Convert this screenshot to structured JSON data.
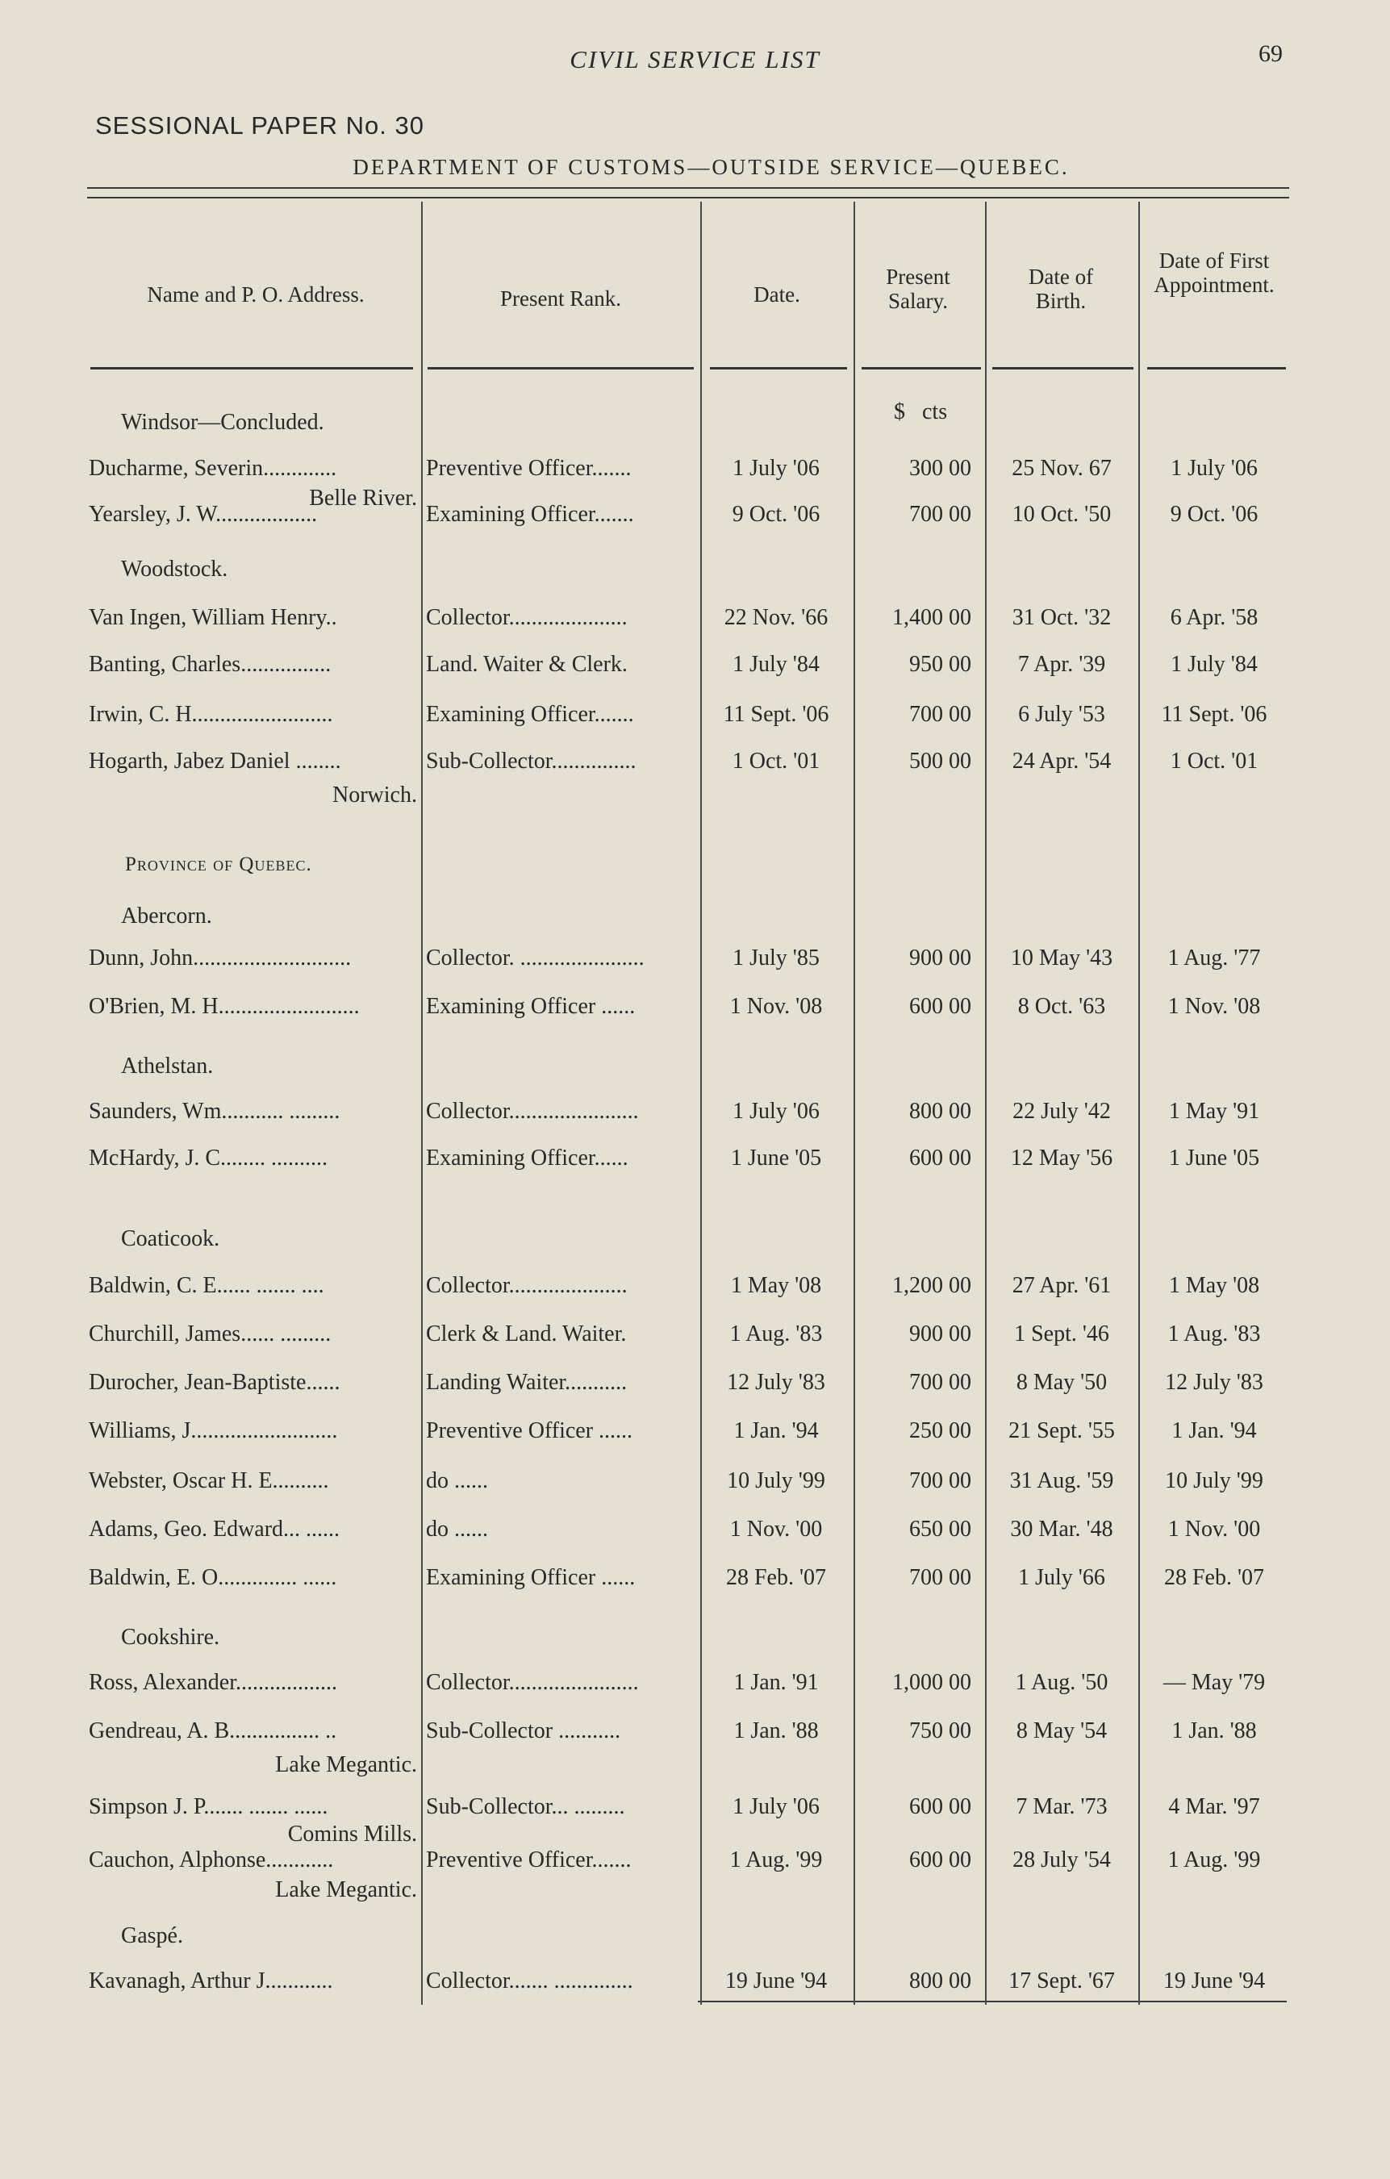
{
  "header": {
    "running_title": "CIVIL SERVICE LIST",
    "page_number": "69",
    "sessional_paper": "SESSIONAL PAPER No. 30",
    "department": "DEPARTMENT OF CUSTOMS—OUTSIDE SERVICE—QUEBEC."
  },
  "columns": [
    "Name and P. O. Address.",
    "Present Rank.",
    "Date.",
    "Present Salary.",
    "Date of Birth.",
    "Date of First Appointment."
  ],
  "salary_unit": "$   cts",
  "rows": [
    {
      "type": "place",
      "text": "Windsor—Concluded."
    },
    {
      "type": "entry",
      "name": "Ducharme, Severin.............",
      "rank": "Preventive Officer.......",
      "date": "1 July '06",
      "salary": "300 00",
      "birth": "25 Nov. 67",
      "first": "1 July '06"
    },
    {
      "type": "address",
      "text": "Belle River."
    },
    {
      "type": "entry",
      "name": "Yearsley, J. W..................",
      "rank": "Examining Officer.......",
      "date": "9 Oct. '06",
      "salary": "700 00",
      "birth": "10 Oct. '50",
      "first": "9 Oct. '06"
    },
    {
      "type": "place",
      "text": "Woodstock."
    },
    {
      "type": "entry",
      "name": "Van Ingen, William Henry..",
      "rank": "Collector.....................",
      "date": "22 Nov. '66",
      "salary": "1,400 00",
      "birth": "31 Oct. '32",
      "first": "6 Apr. '58"
    },
    {
      "type": "entry",
      "name": "Banting, Charles................",
      "rank": "Land. Waiter & Clerk.",
      "date": "1 July '84",
      "salary": "950 00",
      "birth": "7 Apr. '39",
      "first": "1 July '84"
    },
    {
      "type": "entry",
      "name": "Irwin, C. H.........................",
      "rank": "Examining Officer.......",
      "date": "11 Sept. '06",
      "salary": "700 00",
      "birth": "6 July '53",
      "first": "11 Sept. '06"
    },
    {
      "type": "entry",
      "name": "Hogarth, Jabez Daniel ........",
      "rank": "Sub-Collector...............",
      "date": "1 Oct. '01",
      "salary": "500 00",
      "birth": "24 Apr. '54",
      "first": "1 Oct. '01"
    },
    {
      "type": "address",
      "text": "Norwich."
    },
    {
      "type": "province",
      "text": "Province of Quebec."
    },
    {
      "type": "place",
      "text": "Abercorn."
    },
    {
      "type": "entry",
      "name": "Dunn, John............................",
      "rank": "Collector. ......................",
      "date": "1 July '85",
      "salary": "900 00",
      "birth": "10 May '43",
      "first": "1 Aug. '77"
    },
    {
      "type": "entry",
      "name": "O'Brien, M. H.........................",
      "rank": "Examining Officer ......",
      "date": "1 Nov. '08",
      "salary": "600 00",
      "birth": "8 Oct. '63",
      "first": "1 Nov. '08"
    },
    {
      "type": "place",
      "text": "Athelstan."
    },
    {
      "type": "entry",
      "name": "Saunders, Wm...........  .........",
      "rank": "Collector.......................",
      "date": "1 July '06",
      "salary": "800 00",
      "birth": "22 July '42",
      "first": "1 May '91"
    },
    {
      "type": "entry",
      "name": "McHardy, J. C........ ..........",
      "rank": "Examining Officer......",
      "date": "1 June '05",
      "salary": "600 00",
      "birth": "12 May '56",
      "first": "1 June '05"
    },
    {
      "type": "place",
      "text": "Coaticook."
    },
    {
      "type": "entry",
      "name": "Baldwin, C. E...... ....... ....",
      "rank": "Collector.....................",
      "date": "1 May '08",
      "salary": "1,200 00",
      "birth": "27 Apr. '61",
      "first": "1 May '08"
    },
    {
      "type": "entry",
      "name": "Churchill, James...... .........",
      "rank": "Clerk & Land. Waiter.",
      "date": "1 Aug. '83",
      "salary": "900 00",
      "birth": "1 Sept. '46",
      "first": "1 Aug. '83"
    },
    {
      "type": "entry",
      "name": "Durocher, Jean-Baptiste......",
      "rank": "Landing Waiter...........",
      "date": "12 July '83",
      "salary": "700 00",
      "birth": "8 May '50",
      "first": "12 July '83"
    },
    {
      "type": "entry",
      "name": "Williams, J..........................",
      "rank": "Preventive Officer ......",
      "date": "1 Jan. '94",
      "salary": "250 00",
      "birth": "21 Sept. '55",
      "first": "1 Jan. '94"
    },
    {
      "type": "entry",
      "name": "Webster, Oscar H. E..........",
      "rank": "do          ......",
      "date": "10 July '99",
      "salary": "700 00",
      "birth": "31 Aug. '59",
      "first": "10 July '99"
    },
    {
      "type": "entry",
      "name": "Adams, Geo. Edward... ......",
      "rank": "do          ......",
      "date": "1 Nov. '00",
      "salary": "650 00",
      "birth": "30 Mar. '48",
      "first": "1 Nov. '00"
    },
    {
      "type": "entry",
      "name": "Baldwin, E. O..............  ......",
      "rank": "Examining Officer ......",
      "date": "28 Feb. '07",
      "salary": "700 00",
      "birth": "1 July '66",
      "first": "28 Feb. '07"
    },
    {
      "type": "place",
      "text": "Cookshire."
    },
    {
      "type": "entry",
      "name": "Ross, Alexander..................",
      "rank": "Collector.......................",
      "date": "1 Jan. '91",
      "salary": "1,000 00",
      "birth": "1 Aug. '50",
      "first": "— May '79"
    },
    {
      "type": "entry",
      "name": "Gendreau, A. B................ ..",
      "rank": "Sub-Collector ...........",
      "date": "1 Jan. '88",
      "salary": "750 00",
      "birth": "8 May '54",
      "first": "1 Jan. '88"
    },
    {
      "type": "address",
      "text": "Lake Megantic."
    },
    {
      "type": "entry",
      "name": "Simpson J. P....... ....... ......",
      "rank": "Sub-Collector... .........",
      "date": "1 July '06",
      "salary": "600 00",
      "birth": "7 Mar. '73",
      "first": "4 Mar. '97"
    },
    {
      "type": "address",
      "text": "Comins Mills."
    },
    {
      "type": "entry",
      "name": "Cauchon, Alphonse............",
      "rank": "Preventive Officer.......",
      "date": "1 Aug. '99",
      "salary": "600 00",
      "birth": "28 July '54",
      "first": "1 Aug. '99"
    },
    {
      "type": "address",
      "text": "Lake Megantic."
    },
    {
      "type": "place",
      "text": "Gaspé."
    },
    {
      "type": "entry",
      "name": "Kavanagh, Arthur J............",
      "rank": "Collector....... ..............",
      "date": "19 June '94",
      "salary": "800 00",
      "birth": "17 Sept. '67",
      "first": "19 June '94"
    }
  ]
}
